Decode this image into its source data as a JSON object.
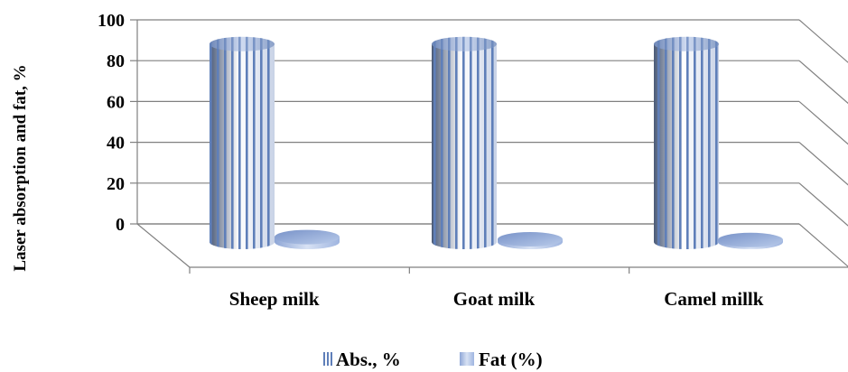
{
  "chart_data": {
    "type": "bar",
    "style": "3d-cylinder",
    "title": "",
    "xlabel": "",
    "ylabel": "Laser absorption and fat, %",
    "categories": [
      "Sheep milk",
      "Goat milk",
      "Camel millk"
    ],
    "ylim": [
      0,
      100
    ],
    "yticks": [
      "0",
      "20",
      "40",
      "60",
      "80",
      "100"
    ],
    "grid": true,
    "legend_position": "bottom",
    "series": [
      {
        "name": "Abs., %",
        "values": [
          97,
          97,
          97
        ],
        "color": "#6f8fc6",
        "pattern": "vertical-stripes"
      },
      {
        "name": "Fat (%)",
        "values": [
          6,
          3.3,
          2.5
        ],
        "color": "#a9bfe6",
        "pattern": "solid-gradient"
      }
    ]
  }
}
